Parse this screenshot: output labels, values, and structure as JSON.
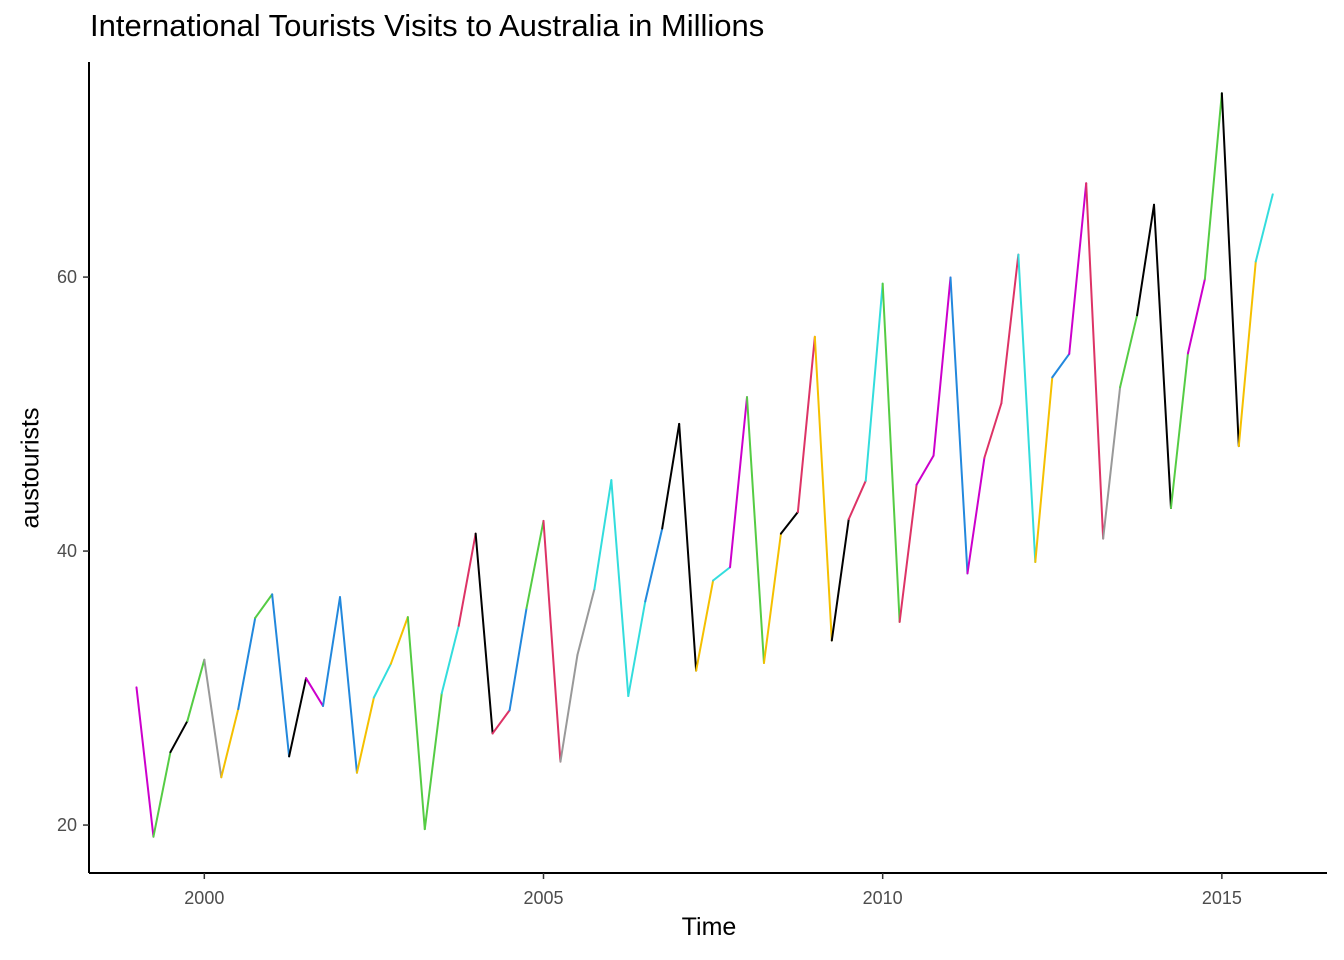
{
  "chart_data": {
    "type": "line",
    "title": "International Tourists Visits to Australia in Millions",
    "xlabel": "Time",
    "ylabel": "austourists",
    "x_ticks": [
      2000,
      2005,
      2010,
      2015
    ],
    "y_ticks": [
      20,
      40,
      60
    ],
    "xlim": [
      1998.3,
      2016.55
    ],
    "ylim": [
      16.5,
      75.7
    ],
    "grid": false,
    "legend": "none",
    "frequency": "quarterly",
    "start": 1999.0,
    "step": 0.25,
    "values": [
      30.05,
      19.15,
      25.32,
      27.59,
      32.07,
      23.49,
      28.47,
      35.12,
      36.84,
      25.01,
      30.72,
      28.69,
      36.64,
      23.82,
      29.31,
      31.77,
      35.18,
      19.7,
      29.61,
      34.54,
      41.27,
      26.69,
      28.38,
      35.84,
      42.2,
      24.63,
      32.41,
      37.21,
      45.18,
      29.42,
      36.33,
      41.65,
      49.28,
      31.27,
      37.85,
      38.82,
      51.24,
      31.83,
      41.27,
      42.85,
      55.64,
      33.47,
      42.33,
      45.13,
      59.52,
      34.83,
      44.84,
      46.97,
      59.97,
      38.37,
      46.82,
      50.79,
      61.64,
      39.2,
      52.68,
      54.39,
      66.85,
      40.91,
      51.97,
      57.21,
      65.28,
      43.14,
      54.43,
      59.86,
      73.42,
      47.66,
      61.14,
      66.04
    ],
    "segment_colors": [
      "#cc00cc",
      "#55cc44",
      "#000000",
      "#55cc44",
      "#999999",
      "#f5c000",
      "#2288dd",
      "#55cc44",
      "#2288dd",
      "#000000",
      "#cc00cc",
      "#2288dd",
      "#2288dd",
      "#f5c000",
      "#33dddd",
      "#f5c000",
      "#55cc44",
      "#55cc44",
      "#33dddd",
      "#dd3366",
      "#000000",
      "#dd3366",
      "#2288dd",
      "#55cc44",
      "#dd3366",
      "#999999",
      "#999999",
      "#33dddd",
      "#33dddd",
      "#33dddd",
      "#2288dd",
      "#000000",
      "#000000",
      "#f5c000",
      "#33dddd",
      "#cc00cc",
      "#55cc44",
      "#f5c000",
      "#000000",
      "#dd3366",
      "#f5c000",
      "#000000",
      "#dd3366",
      "#33dddd",
      "#55cc44",
      "#dd3366",
      "#cc00cc",
      "#cc00cc",
      "#2288dd",
      "#cc00cc",
      "#dd3366",
      "#dd3366",
      "#33dddd",
      "#f5c000",
      "#2288dd",
      "#cc00cc",
      "#dd3366",
      "#999999",
      "#55cc44",
      "#000000",
      "#000000",
      "#55cc44",
      "#cc00cc",
      "#55cc44",
      "#000000",
      "#f5c000",
      "#33dddd"
    ]
  }
}
